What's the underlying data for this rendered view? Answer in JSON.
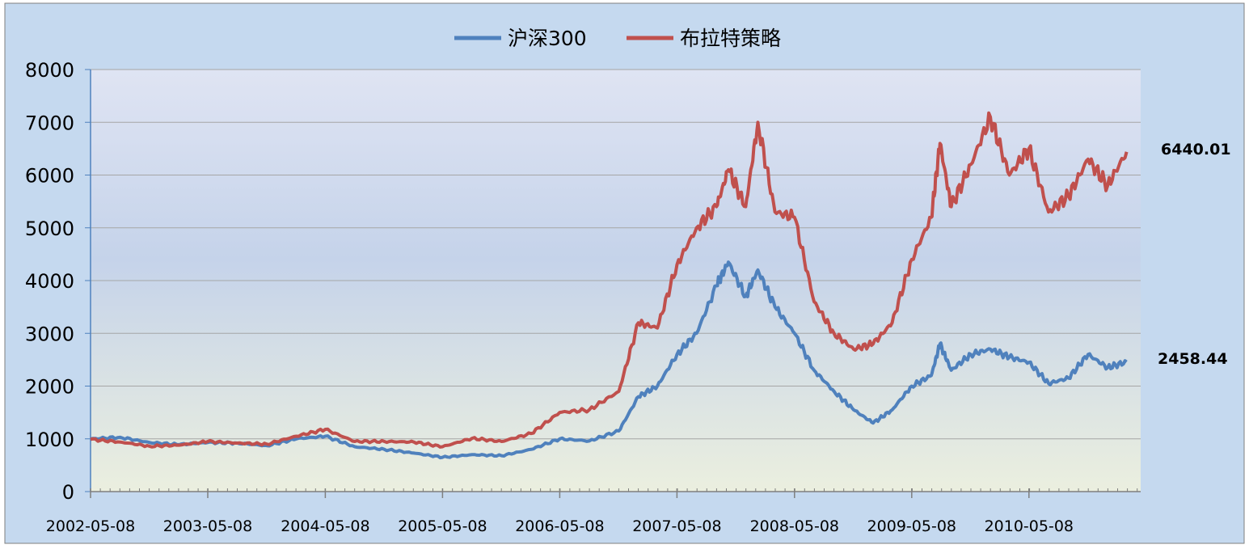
{
  "chart_data": {
    "type": "line",
    "title": "",
    "xlabel": "",
    "ylabel": "",
    "ylim": [
      0,
      8000
    ],
    "y_ticks": [
      "0",
      "1000",
      "2000",
      "3000",
      "4000",
      "5000",
      "6000",
      "7000",
      "8000"
    ],
    "x_tick_labels": [
      "2002-05-08",
      "2003-05-08",
      "2004-05-08",
      "2005-05-08",
      "2006-05-08",
      "2007-05-08",
      "2008-05-08",
      "2009-05-08",
      "2010-05-08"
    ],
    "grid": true,
    "legend_position": "top",
    "x_dates": [
      "2002-05-08",
      "2002-08-08",
      "2002-11-08",
      "2003-02-08",
      "2003-05-08",
      "2003-08-08",
      "2003-11-08",
      "2004-02-08",
      "2004-05-08",
      "2004-08-08",
      "2004-11-08",
      "2005-02-08",
      "2005-05-08",
      "2005-08-08",
      "2005-11-08",
      "2006-02-08",
      "2006-05-08",
      "2006-08-08",
      "2006-11-08",
      "2007-01-08",
      "2007-03-08",
      "2007-05-08",
      "2007-07-08",
      "2007-09-08",
      "2007-10-15",
      "2007-12-08",
      "2008-01-15",
      "2008-03-08",
      "2008-05-08",
      "2008-07-08",
      "2008-09-08",
      "2008-11-08",
      "2009-01-08",
      "2009-03-08",
      "2009-05-08",
      "2009-07-08",
      "2009-08-04",
      "2009-09-08",
      "2009-11-08",
      "2010-01-08",
      "2010-03-08",
      "2010-05-08",
      "2010-07-08",
      "2010-09-08",
      "2010-11-08",
      "2011-01-08",
      "2011-03-08"
    ],
    "series": [
      {
        "name": "沪深300",
        "color": "#4f81bd",
        "values": [
          1000,
          1030,
          930,
          890,
          930,
          920,
          870,
          1000,
          1050,
          850,
          800,
          730,
          650,
          700,
          680,
          800,
          1000,
          960,
          1150,
          1800,
          2000,
          2600,
          3000,
          3900,
          4350,
          3700,
          4200,
          3500,
          3000,
          2300,
          1900,
          1550,
          1300,
          1550,
          2000,
          2200,
          2800,
          2300,
          2600,
          2700,
          2550,
          2450,
          2050,
          2150,
          2600,
          2350,
          2458.44
        ]
      },
      {
        "name": "布拉特策略",
        "color": "#c0504d",
        "values": [
          990,
          940,
          860,
          880,
          950,
          920,
          900,
          1050,
          1180,
          950,
          950,
          940,
          850,
          1010,
          950,
          1100,
          1500,
          1550,
          1900,
          3200,
          3100,
          4300,
          5000,
          5400,
          6100,
          5400,
          7000,
          5300,
          5200,
          3600,
          3000,
          2700,
          2800,
          3200,
          4400,
          5200,
          6600,
          5400,
          6200,
          7100,
          6000,
          6500,
          5300,
          5600,
          6300,
          5800,
          6440.01
        ]
      }
    ],
    "end_labels": [
      "6440.01",
      "2458.44"
    ]
  }
}
